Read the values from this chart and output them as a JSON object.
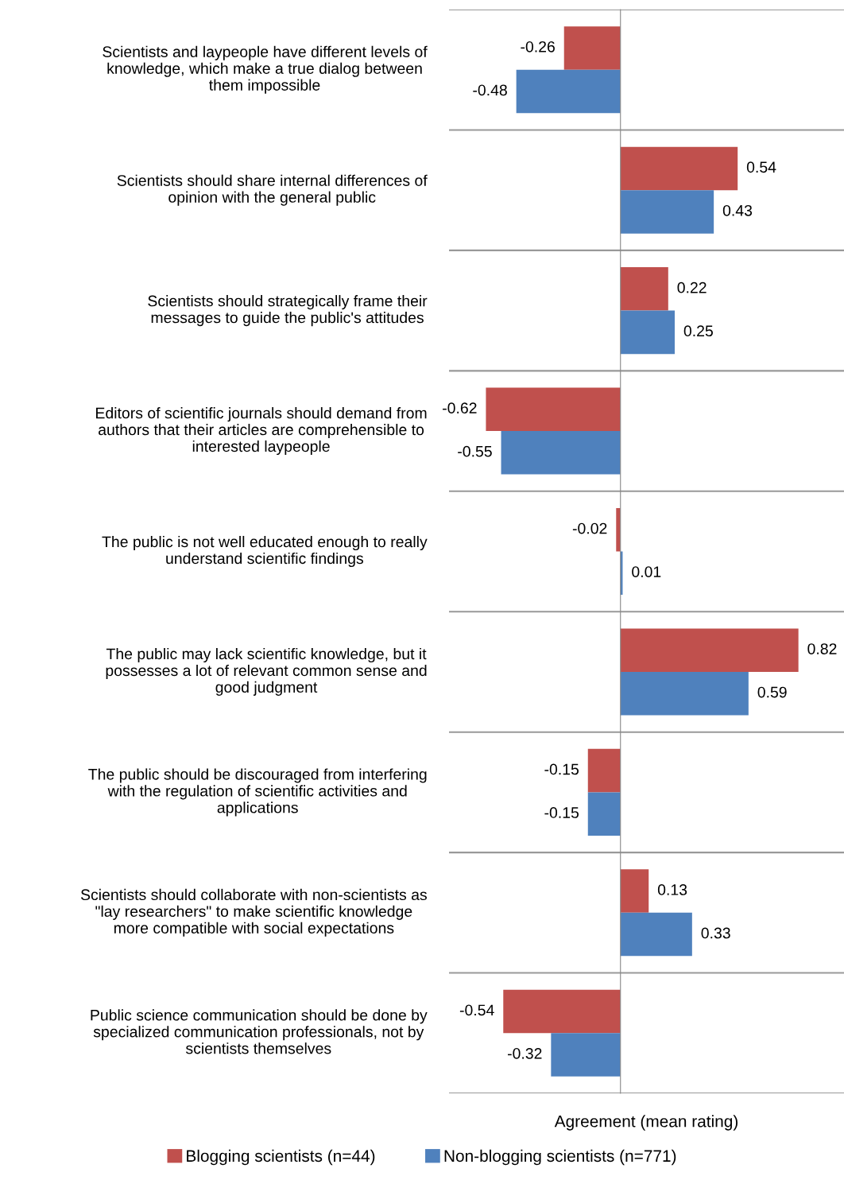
{
  "chart_data": {
    "type": "bar",
    "orientation": "horizontal",
    "categories": [
      "Scientists and laypeople have different levels of\nknowledge, which make a true dialog between\nthem impossible",
      "Scientists should share internal differences of\nopinion with the general public",
      "Scientists should strategically frame their\nmessages to guide the public's attitudes",
      "Editors of scientific journals should demand from\nauthors that their articles are comprehensible to\ninterested laypeople",
      "The public is not well educated enough to really\nunderstand scientific findings",
      "The public may lack scientific knowledge, but it\npossesses a lot of relevant common sense and\ngood judgment",
      "The public should be discouraged from interfering\nwith the regulation of scientific activities and\napplications",
      "Scientists should collaborate with non-scientists as\n\"lay researchers\" to make scientific knowledge\nmore compatible with social expectations",
      "Public science communication should be done by\nspecialized communication professionals, not by\nscientists themselves"
    ],
    "series": [
      {
        "name": "Blogging scientists (n=44)",
        "color": "#c0504d",
        "values": [
          -0.26,
          0.54,
          0.22,
          -0.62,
          -0.02,
          0.82,
          -0.15,
          0.13,
          -0.54
        ]
      },
      {
        "name": "Non-blogging scientists (n=771)",
        "color": "#4f81bd",
        "values": [
          -0.48,
          0.43,
          0.25,
          -0.55,
          0.01,
          0.59,
          -0.15,
          0.33,
          -0.32
        ]
      }
    ],
    "xlabel": "Agreement (mean rating)",
    "xlim": [
      -0.79,
      1.03
    ],
    "data_labels": true,
    "grid": "y",
    "legend": "bottom"
  }
}
